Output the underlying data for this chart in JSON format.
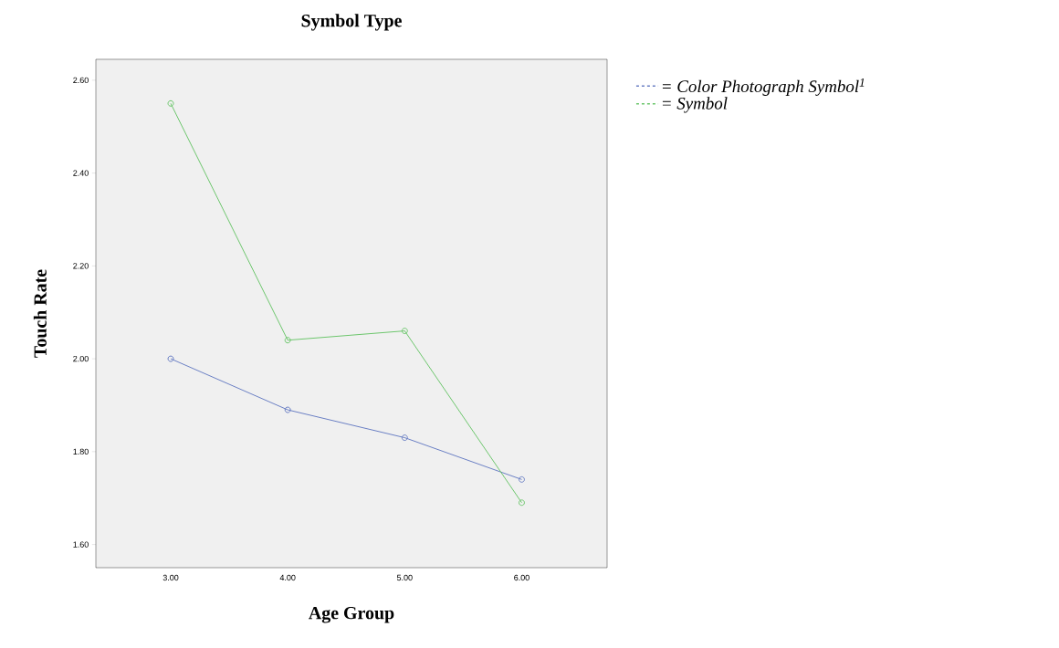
{
  "chart_data": {
    "type": "line",
    "title": "Symbol Type",
    "xlabel": "Age Group",
    "ylabel": "Touch Rate",
    "categories": [
      "3.00",
      "4.00",
      "5.00",
      "6.00"
    ],
    "series": [
      {
        "name": "= Color Photograph Symbol$^{1}$",
        "color": "#6a7fc4",
        "values": [
          2.0,
          1.89,
          1.83,
          1.74
        ]
      },
      {
        "name": "= Symbol",
        "color": "#6cc66c",
        "values": [
          2.55,
          2.04,
          2.06,
          1.69
        ]
      }
    ],
    "ylim": [
      1.55,
      2.645
    ],
    "yticks": [
      {
        "value": 1.6,
        "label": "1.60"
      },
      {
        "value": 1.8,
        "label": "1.80"
      },
      {
        "value": 2.0,
        "label": "2.00"
      },
      {
        "value": 2.2,
        "label": "2.20"
      },
      {
        "value": 2.4,
        "label": "2.40"
      },
      {
        "value": 2.6,
        "label": "2.60"
      }
    ],
    "marker": "circle",
    "line_style": "solid",
    "legend": "top right",
    "grid": false
  }
}
